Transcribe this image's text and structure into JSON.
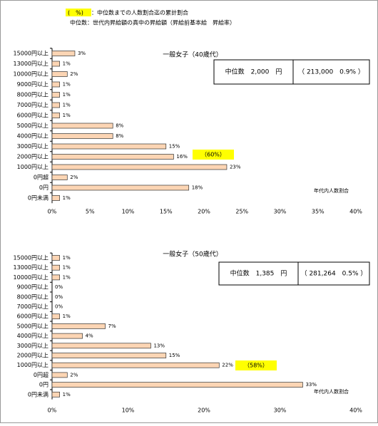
{
  "notes": {
    "highlight": "(　%)",
    "line1": "：中位数までの人数割合迄の累計割合",
    "line2": "中位数：世代内昇給額の真中の昇給額（昇給前基本給　昇給率）"
  },
  "chart_data": [
    {
      "type": "bar",
      "orientation": "horizontal",
      "title": "一般女子（40歳代）",
      "median_box": [
        "中位数　2,000　円",
        "（ 213,000　0.9% ）"
      ],
      "annotation": "（60%）",
      "xlabel": "年代内人数割合",
      "color": "#fcd5b4",
      "categories": [
        "15000円以上",
        "13000円以上",
        "10000円以上",
        "9000円以上",
        "8000円以上",
        "7000円以上",
        "6000円以上",
        "5000円以上",
        "4000円以上",
        "3000円以上",
        "2000円以上",
        "1000円以上",
        "0円超",
        "0円",
        "0円未満"
      ],
      "values": [
        3,
        1,
        2,
        1,
        1,
        1,
        1,
        8,
        8,
        15,
        16,
        23,
        2,
        18,
        1
      ],
      "value_labels": [
        "3%",
        "1%",
        "2%",
        "1%",
        "1%",
        "1%",
        "1%",
        "8%",
        "8%",
        "15%",
        "16%",
        "23%",
        "2%",
        "18%",
        "1%"
      ],
      "xlim": [
        0,
        40
      ],
      "xticks": [
        {
          "value": 0,
          "label": "0%"
        },
        {
          "value": 5,
          "label": "5%"
        },
        {
          "value": 10,
          "label": "10%"
        },
        {
          "value": 15,
          "label": "15%"
        },
        {
          "value": 20,
          "label": "20%"
        },
        {
          "value": 25,
          "label": "25%"
        },
        {
          "value": 30,
          "label": "30%"
        },
        {
          "value": 35,
          "label": "35%"
        },
        {
          "value": 40,
          "label": "40%"
        }
      ]
    },
    {
      "type": "bar",
      "orientation": "horizontal",
      "title": "一般女子（50歳代）",
      "median_box": [
        "中位数　1,385　円",
        "（ 281,264　0.5% ）"
      ],
      "annotation": "（58%）",
      "xlabel": "年代内人数割合",
      "color": "#fcd5b4",
      "categories": [
        "15000円以上",
        "13000円以上",
        "10000円以上",
        "9000円以上",
        "8000円以上",
        "7000円以上",
        "6000円以上",
        "5000円以上",
        "4000円以上",
        "3000円以上",
        "2000円以上",
        "1000円以上",
        "0円超",
        "0円",
        "0円未満"
      ],
      "values": [
        1,
        1,
        1,
        0,
        0,
        0,
        1,
        7,
        4,
        13,
        15,
        22,
        2,
        33,
        1
      ],
      "value_labels": [
        "1%",
        "1%",
        "1%",
        "0%",
        "0%",
        "0%",
        "1%",
        "7%",
        "4%",
        "13%",
        "15%",
        "22%",
        "2%",
        "33%",
        "1%"
      ],
      "xlim": [
        0,
        40
      ],
      "xticks": [
        {
          "value": 0,
          "label": "0%"
        },
        {
          "value": 10,
          "label": "10%"
        },
        {
          "value": 20,
          "label": "20%"
        },
        {
          "value": 30,
          "label": "30%"
        },
        {
          "value": 40,
          "label": "40%"
        }
      ]
    }
  ]
}
